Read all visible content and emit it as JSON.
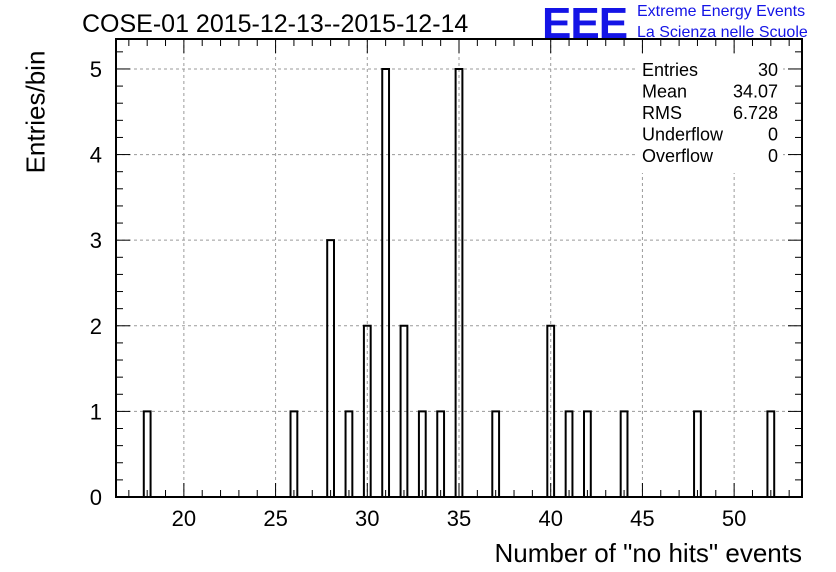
{
  "chart_data": {
    "type": "bar",
    "title": "COSE-01 2015-12-13--2015-12-14",
    "xlabel": "Number of \"no hits\" events",
    "ylabel": "Entries/bin",
    "xlim": [
      16.3,
      53.7
    ],
    "ylim": [
      0,
      5.35
    ],
    "grid": true,
    "bin_width": 0.37,
    "x_ticks": [
      20,
      25,
      30,
      35,
      40,
      45,
      50
    ],
    "y_ticks": [
      0,
      1,
      2,
      3,
      4,
      5
    ],
    "bins": [
      {
        "x": 18,
        "value": 1
      },
      {
        "x": 26,
        "value": 1
      },
      {
        "x": 28,
        "value": 3
      },
      {
        "x": 29,
        "value": 1
      },
      {
        "x": 30,
        "value": 2
      },
      {
        "x": 31,
        "value": 5
      },
      {
        "x": 32,
        "value": 2
      },
      {
        "x": 33,
        "value": 1
      },
      {
        "x": 34,
        "value": 1
      },
      {
        "x": 35,
        "value": 5
      },
      {
        "x": 37,
        "value": 1
      },
      {
        "x": 40,
        "value": 2
      },
      {
        "x": 41,
        "value": 1
      },
      {
        "x": 42,
        "value": 1
      },
      {
        "x": 44,
        "value": 1
      },
      {
        "x": 48,
        "value": 1
      },
      {
        "x": 52,
        "value": 1
      }
    ],
    "stats": [
      {
        "label": "Entries",
        "value": "30"
      },
      {
        "label": "Mean",
        "value": "34.07"
      },
      {
        "label": "RMS",
        "value": "6.728"
      },
      {
        "label": "Underflow",
        "value": "0"
      },
      {
        "label": "Overflow",
        "value": "0"
      }
    ]
  },
  "logo": {
    "mark": "EEE",
    "line1": "Extreme Energy Events",
    "line2": "La Scienza nelle Scuole",
    "color": "#1414e6"
  }
}
